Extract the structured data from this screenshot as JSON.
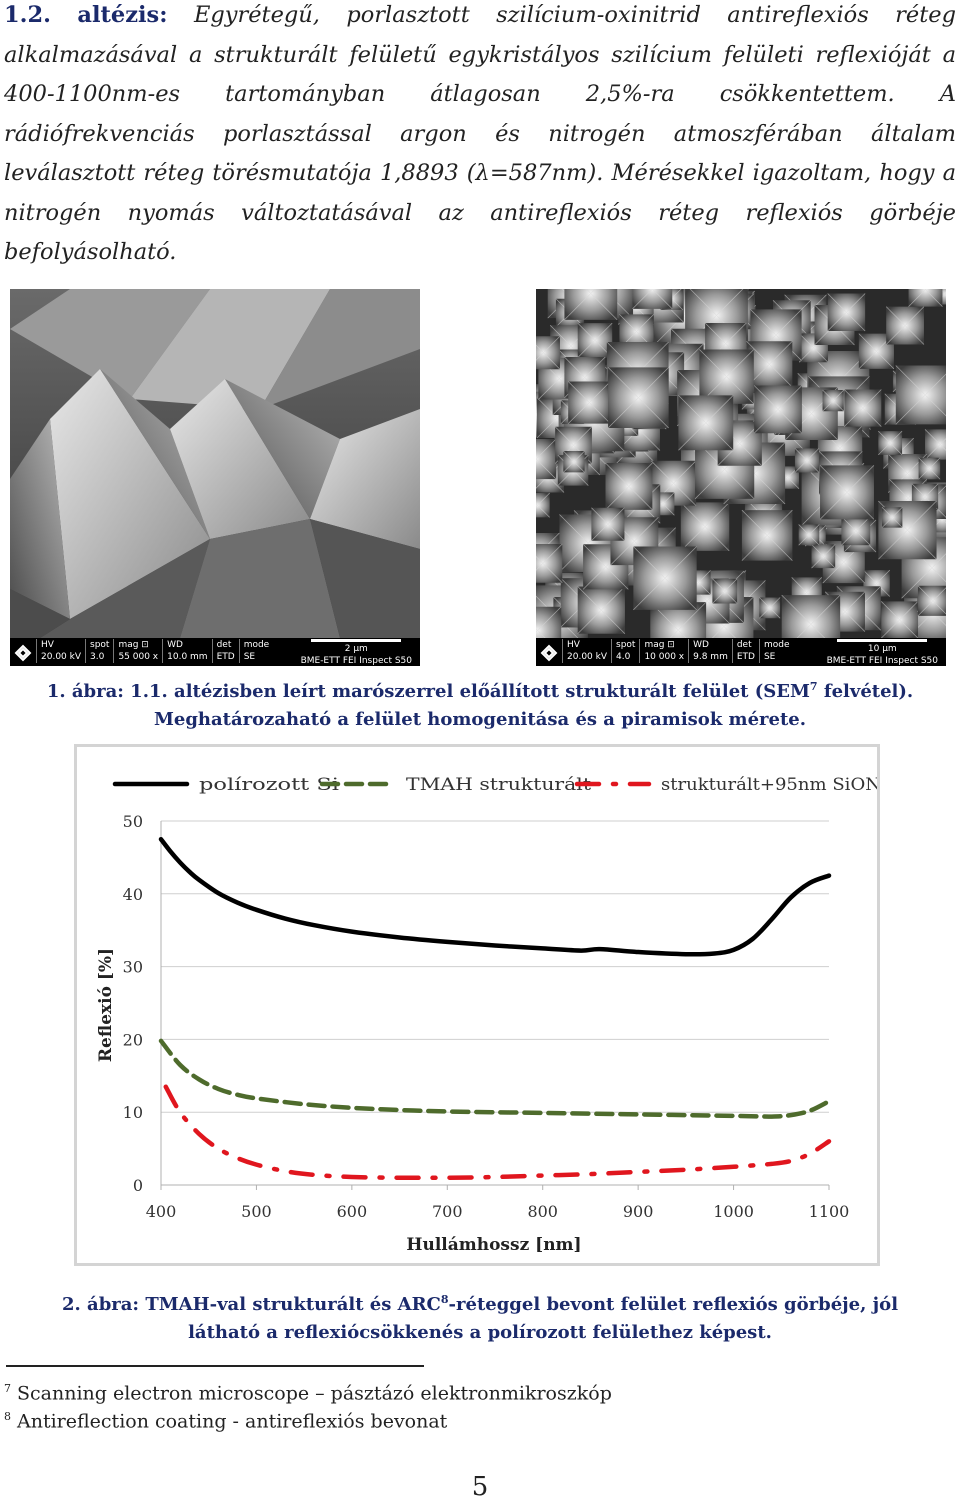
{
  "paragraph": {
    "number": "1.2.",
    "keyword": "altézis",
    "text": "Egyrétegű, porlasztott szilícium-oxinitrid antireflexiós réteg alkalmazásával a strukturált felületű egykristályos szilícium felületi reflexióját a 400-1100nm-es tartományban átlagosan 2,5%-ra csökkentettem. A rádiófrekvenciás porlasztással argon és nitrogén atmoszférában általam leválasztott réteg törésmutatója 1,8893 (λ=587nm). Mérésekkel igazoltam, hogy a nitrogén nyomás változtatásával az antireflexiós réteg reflexiós görbéje befolyásolható."
  },
  "sem_left": {
    "hv": "HV",
    "hv_val": "20.00 kV",
    "spot": "spot",
    "spot_val": "3.0",
    "mag": "mag ⊡",
    "mag_val": "55 000 x",
    "wd": "WD",
    "wd_val": "10.0 mm",
    "det": "det",
    "det_val": "ETD",
    "mode": "mode",
    "mode_val": "SE",
    "scale": "2 μm",
    "instrument": "BME-ETT FEI Inspect S50"
  },
  "sem_right": {
    "hv": "HV",
    "hv_val": "20.00 kV",
    "spot": "spot",
    "spot_val": "4.0",
    "mag": "mag ⊡",
    "mag_val": "10 000 x",
    "wd": "WD",
    "wd_val": "9.8 mm",
    "det": "det",
    "det_val": "ETD",
    "mode": "mode",
    "mode_val": "SE",
    "scale": "10 μm",
    "instrument": "BME-ETT FEI Inspect S50"
  },
  "caption1": {
    "line1_pre": "1. ábra: 1.1. altézisben leírt marószerrel előállított strukturált felület (SEM",
    "sup": "7",
    "line1_post": " felvétel).",
    "line2": "Meghatározaható a felület homogenitása és a piramisok mérete."
  },
  "chart_data": {
    "type": "line",
    "xlabel": "Hullámhossz [nm]",
    "ylabel": "Reflexió [%]",
    "xlim": [
      400,
      1100
    ],
    "ylim": [
      0,
      50
    ],
    "xticks": [
      400,
      500,
      600,
      700,
      800,
      900,
      1000,
      1100
    ],
    "yticks": [
      0,
      10,
      20,
      30,
      40,
      50
    ],
    "grid": "horizontal",
    "legend_position": "top",
    "series": [
      {
        "name": "polírozott Si",
        "color": "#000000",
        "style": "solid",
        "x": [
          400,
          410,
          420,
          430,
          440,
          460,
          480,
          500,
          530,
          560,
          600,
          650,
          700,
          750,
          800,
          840,
          860,
          900,
          950,
          980,
          1000,
          1020,
          1040,
          1060,
          1080,
          1100
        ],
        "y": [
          47.5,
          45.8,
          44.3,
          43.0,
          41.9,
          40.1,
          38.8,
          37.8,
          36.6,
          35.7,
          34.8,
          34.0,
          33.4,
          32.9,
          32.5,
          32.2,
          32.4,
          32.0,
          31.7,
          31.8,
          32.3,
          33.8,
          36.5,
          39.5,
          41.5,
          42.5
        ]
      },
      {
        "name": "TMAH strukturált",
        "color": "#4e6b2c",
        "style": "dashed",
        "x": [
          400,
          420,
          440,
          460,
          480,
          500,
          550,
          600,
          650,
          700,
          800,
          900,
          1000,
          1040,
          1060,
          1080,
          1100
        ],
        "y": [
          19.8,
          16.5,
          14.5,
          13.2,
          12.4,
          11.9,
          11.1,
          10.6,
          10.3,
          10.1,
          9.9,
          9.7,
          9.5,
          9.4,
          9.6,
          10.2,
          11.5
        ]
      },
      {
        "name": "strukturált+95nm SiON",
        "color": "#e0161e",
        "style": "dashdot",
        "x": [
          405,
          420,
          440,
          460,
          480,
          500,
          530,
          560,
          600,
          650,
          700,
          750,
          800,
          850,
          900,
          950,
          1000,
          1040,
          1060,
          1080,
          1100
        ],
        "y": [
          13.5,
          10.0,
          7.0,
          5.0,
          3.7,
          2.8,
          1.9,
          1.4,
          1.1,
          1.0,
          1.0,
          1.1,
          1.3,
          1.5,
          1.8,
          2.1,
          2.5,
          2.9,
          3.3,
          4.3,
          6.0
        ]
      }
    ]
  },
  "caption2": {
    "line1_pre": "2. ábra: TMAH-val strukturált és ARC",
    "sup": "8",
    "line1_post": "-réteggel bevont felület reflexiós görbéje, jól",
    "line2": "látható a reflexiócsökkenés a polírozott felülethez képest."
  },
  "footnotes": [
    {
      "num": "7",
      "text": "Scanning electron microscope – pásztázó elektronmikroszkóp"
    },
    {
      "num": "8",
      "text": "Antireflection coating - antireflexiós bevonat"
    }
  ],
  "page_number": "5"
}
